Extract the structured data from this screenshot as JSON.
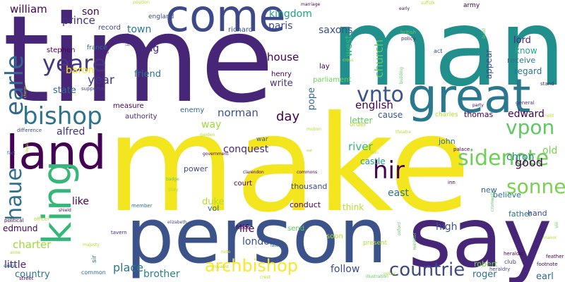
{
  "words": [
    {
      "text": "time",
      "color": "#482677"
    },
    {
      "text": "make",
      "color": "#f3e51e"
    },
    {
      "text": "man",
      "color": "#21908d"
    },
    {
      "text": "person",
      "color": "#3b528b"
    },
    {
      "text": "say",
      "color": "#482677"
    },
    {
      "text": "come",
      "color": "#3e4989"
    },
    {
      "text": "great",
      "color": "#2a788e"
    },
    {
      "text": "land",
      "color": "#440154"
    },
    {
      "text": "king",
      "color": "#35b779"
    },
    {
      "text": "bishop",
      "color": "#2c728e"
    },
    {
      "text": "yeare",
      "color": "#453781"
    },
    {
      "text": "earle",
      "color": "#31688e"
    },
    {
      "text": "haue",
      "color": "#2d708e"
    },
    {
      "text": "vnto",
      "color": "#3b528b"
    },
    {
      "text": "vpon",
      "color": "#5ec962"
    },
    {
      "text": "hir",
      "color": "#440154"
    },
    {
      "text": "sidenote",
      "color": "#6ece58"
    },
    {
      "text": "sonne",
      "color": "#7ad151"
    },
    {
      "text": "archbishop",
      "color": "#fde725"
    },
    {
      "text": "countrie",
      "color": "#3e4989"
    },
    {
      "text": "william",
      "color": "#440154"
    },
    {
      "text": "son",
      "color": "#440154"
    },
    {
      "text": "prince",
      "color": "#46327e"
    },
    {
      "text": "kingdom",
      "color": "#1f9e89"
    },
    {
      "text": "saxons",
      "color": "#3b528b"
    },
    {
      "text": "paris",
      "color": "#3e4989"
    },
    {
      "text": "town",
      "color": "#2a788e"
    },
    {
      "text": "long",
      "color": "#482878"
    },
    {
      "text": "baron",
      "color": "#fde725"
    },
    {
      "text": "year",
      "color": "#443983"
    },
    {
      "text": "friend",
      "color": "#2c728e"
    },
    {
      "text": "house",
      "color": "#440154"
    },
    {
      "text": "write",
      "color": "#46327e"
    },
    {
      "text": "church",
      "color": "#5ec962"
    },
    {
      "text": "west",
      "color": "#35b779"
    },
    {
      "text": "lord",
      "color": "#482878"
    },
    {
      "text": "know",
      "color": "#22a884"
    },
    {
      "text": "receive",
      "color": "#2c728e"
    },
    {
      "text": "regard",
      "color": "#2c728e"
    },
    {
      "text": "appear",
      "color": "#3e4989"
    },
    {
      "text": "state",
      "color": "#31688e"
    },
    {
      "text": "norman",
      "color": "#3b528b"
    },
    {
      "text": "day",
      "color": "#440154"
    },
    {
      "text": "english",
      "color": "#440154"
    },
    {
      "text": "edward",
      "color": "#440154"
    },
    {
      "text": "alfred",
      "color": "#46327e"
    },
    {
      "text": "way",
      "color": "#a0da39"
    },
    {
      "text": "conquest",
      "color": "#482878"
    },
    {
      "text": "chron",
      "color": "#26828e"
    },
    {
      "text": "old",
      "color": "#7ad151"
    },
    {
      "text": "good",
      "color": "#440154"
    },
    {
      "text": "river",
      "color": "#35b779"
    },
    {
      "text": "castle",
      "color": "#1f9e89"
    },
    {
      "text": "east",
      "color": "#2c728e"
    },
    {
      "text": "london",
      "color": "#3b528b"
    },
    {
      "text": "like",
      "color": "#440154"
    },
    {
      "text": "charter",
      "color": "#a0da39"
    },
    {
      "text": "little",
      "color": "#482878"
    },
    {
      "text": "country",
      "color": "#2c728e"
    },
    {
      "text": "place",
      "color": "#2a788e"
    },
    {
      "text": "brother",
      "color": "#26828e"
    },
    {
      "text": "follow",
      "color": "#3e4989"
    },
    {
      "text": "life",
      "color": "#440154"
    },
    {
      "text": "edmund",
      "color": "#440154"
    },
    {
      "text": "high",
      "color": "#3b528b"
    },
    {
      "text": "roger",
      "color": "#2c728e"
    },
    {
      "text": "robert",
      "color": "#7ad151"
    },
    {
      "text": "earl",
      "color": "#31688e"
    },
    {
      "text": "duke",
      "color": "#b5de2b"
    },
    {
      "text": "vol",
      "color": "#31688e"
    },
    {
      "text": "conduct",
      "color": "#440154"
    },
    {
      "text": "think",
      "color": "#b5de2b"
    },
    {
      "text": "thousand",
      "color": "#3e4989"
    },
    {
      "text": "court",
      "color": "#440154"
    },
    {
      "text": "power",
      "color": "#3e4989"
    },
    {
      "text": "john",
      "color": "#2c728e"
    },
    {
      "text": "hand",
      "color": "#3e4989"
    },
    {
      "text": "believe",
      "color": "#2c728e"
    },
    {
      "text": "new",
      "color": "#31688e"
    },
    {
      "text": "father",
      "color": "#2c728e"
    },
    {
      "text": "parliament",
      "color": "#6ece58"
    },
    {
      "text": "pope",
      "color": "#31688e"
    },
    {
      "text": "letter",
      "color": "#5ec962"
    },
    {
      "text": "cause",
      "color": "#3b528b"
    },
    {
      "text": "thomas",
      "color": "#440154"
    },
    {
      "text": "charles",
      "color": "#b5de2b"
    },
    {
      "text": "henry",
      "color": "#440154"
    },
    {
      "text": "lay",
      "color": "#440154"
    },
    {
      "text": "richard",
      "color": "#3b528b"
    },
    {
      "text": "stephen",
      "color": "#440154"
    },
    {
      "text": "france",
      "color": "#31688e"
    },
    {
      "text": "england",
      "color": "#3e4989"
    },
    {
      "text": "record",
      "color": "#3e4989"
    },
    {
      "text": "enemy",
      "color": "#31688e"
    },
    {
      "text": "authority",
      "color": "#482878"
    },
    {
      "text": "measure",
      "color": "#440154"
    },
    {
      "text": "send",
      "color": "#5ec962"
    },
    {
      "text": "soon",
      "color": "#b5de2b"
    },
    {
      "text": "present",
      "color": "#b5de2b"
    },
    {
      "text": "army",
      "color": "#440154"
    },
    {
      "text": "act",
      "color": "#3e4989"
    },
    {
      "text": "policy",
      "color": "#482878"
    },
    {
      "text": "war",
      "color": "#3b528b"
    },
    {
      "text": "order",
      "color": "#b5de2b"
    },
    {
      "text": "general",
      "color": "#46327e"
    },
    {
      "text": "stand",
      "color": "#46327e"
    },
    {
      "text": "supporter",
      "color": "#3e4989"
    },
    {
      "text": "difference",
      "color": "#3e4989"
    },
    {
      "text": "member",
      "color": "#2c728e"
    },
    {
      "text": "play",
      "color": "#b5de2b"
    },
    {
      "text": "badge",
      "color": "#5ec962"
    },
    {
      "text": "elizabeth",
      "color": "#3e4989"
    },
    {
      "text": "officer",
      "color": "#b5de2b"
    },
    {
      "text": "political",
      "color": "#440154"
    },
    {
      "text": "shield",
      "color": "#440154"
    },
    {
      "text": "tavern",
      "color": "#482878"
    },
    {
      "text": "force",
      "color": "#440154"
    },
    {
      "text": "note",
      "color": "#b5de2b"
    },
    {
      "text": "late",
      "color": "#2c728e"
    },
    {
      "text": "club",
      "color": "#3e4989"
    },
    {
      "text": "heraldry",
      "color": "#3e4989"
    },
    {
      "text": "heraldic",
      "color": "#440154"
    },
    {
      "text": "footnote",
      "color": "#440154"
    },
    {
      "text": "feather",
      "color": "#440154"
    },
    {
      "text": "inn",
      "color": "#440154"
    },
    {
      "text": "palace",
      "color": "#440154"
    },
    {
      "text": "commons",
      "color": "#440154"
    },
    {
      "text": "clarendon",
      "color": "#440154"
    },
    {
      "text": "government",
      "color": "#440154"
    },
    {
      "text": "garden",
      "color": "#b5de2b"
    },
    {
      "text": "motion",
      "color": "#b5de2b"
    },
    {
      "text": "theatre",
      "color": "#b5de2b"
    },
    {
      "text": "position",
      "color": "#b5de2b"
    },
    {
      "text": "marriage",
      "color": "#440154"
    },
    {
      "text": "james",
      "color": "#482878"
    },
    {
      "text": "george",
      "color": "#482878"
    },
    {
      "text": "early",
      "color": "#440154"
    },
    {
      "text": "party",
      "color": "#440154"
    },
    {
      "text": "street",
      "color": "#440154"
    },
    {
      "text": "illustration",
      "color": "#5ec962"
    },
    {
      "text": "crest",
      "color": "#b5de2b"
    },
    {
      "text": "anne",
      "color": "#b5de2b"
    },
    {
      "text": "sir",
      "color": "#31688e"
    },
    {
      "text": "common",
      "color": "#31688e"
    },
    {
      "text": "british",
      "color": "#5ec962"
    },
    {
      "text": "royal",
      "color": "#b5de2b"
    },
    {
      "text": "cross",
      "color": "#b5de2b"
    },
    {
      "text": "suffolk",
      "color": "#b5de2b"
    },
    {
      "text": "building",
      "color": "#5ec962"
    },
    {
      "text": "build",
      "color": "#5ec962"
    },
    {
      "text": "exeter",
      "color": "#31688e"
    },
    {
      "text": "majesty",
      "color": "#b5de2b"
    },
    {
      "text": "cromwell",
      "color": "#5ec962"
    },
    {
      "text": "royalist",
      "color": "#b5de2b"
    },
    {
      "text": "oxford",
      "color": "#5ec962"
    },
    {
      "text": "minister",
      "color": "#5ec962"
    },
    {
      "text": "manor",
      "color": "#b5de2b"
    },
    {
      "text": "charge",
      "color": "#b5de2b"
    },
    {
      "text": "fact",
      "color": "#31688e"
    },
    {
      "text": "public",
      "color": "#b5de2b"
    },
    {
      "text": "lion",
      "color": "#b5de2b"
    },
    {
      "text": "eat",
      "color": "#b5de2b"
    },
    {
      "text": "hold",
      "color": "#b5de2b"
    },
    {
      "text": "viii",
      "color": "#5ec962"
    }
  ]
}
